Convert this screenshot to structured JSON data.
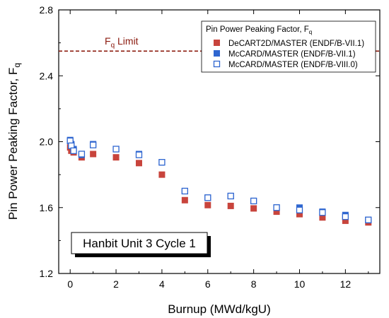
{
  "chart_data": {
    "type": "scatter",
    "xlabel": "Burnup (MWd/kgU)",
    "ylabel_main": "Pin Power Peaking Factor, F",
    "ylabel_sub": "q",
    "xlim": [
      -0.5,
      13.5
    ],
    "ylim": [
      1.2,
      2.8
    ],
    "x_ticks": [
      0,
      2,
      4,
      6,
      8,
      10,
      12
    ],
    "y_ticks": [
      1.2,
      1.6,
      2.0,
      2.4,
      2.8
    ],
    "x_tick_labels": [
      "0",
      "2",
      "4",
      "6",
      "8",
      "10",
      "12"
    ],
    "y_tick_labels": [
      "1.2",
      "1.6",
      "2.0",
      "2.4",
      "2.8"
    ],
    "limit": {
      "value": 2.55,
      "label_main": "F",
      "label_sub": "q",
      "label_rest": " Limit",
      "color": "#8b1a0e"
    },
    "annotation": "Hanbit Unit 3 Cycle 1",
    "legend": {
      "title_main": "Pin Power Peaking Factor, F",
      "title_sub": "q",
      "position": "top-right"
    },
    "series": [
      {
        "name": "DeCART2D/MASTER (ENDF/B-VII.1)",
        "marker": "filled-square",
        "color": "#c8443c",
        "x": [
          0,
          0.05,
          0.15,
          0.5,
          1,
          2,
          3,
          4,
          5,
          6,
          7,
          8,
          9,
          10,
          11,
          12,
          13
        ],
        "y": [
          1.965,
          1.945,
          1.935,
          1.905,
          1.925,
          1.905,
          1.87,
          1.8,
          1.645,
          1.615,
          1.61,
          1.595,
          1.575,
          1.56,
          1.54,
          1.52,
          1.51
        ]
      },
      {
        "name": "McCARD/MASTER (ENDF/B-VII.1)",
        "marker": "filled-square",
        "color": "#2f66d0",
        "x": [
          0,
          0.05,
          0.15,
          0.5,
          1,
          2,
          3,
          4,
          5,
          6,
          7,
          8,
          9,
          10,
          11,
          12,
          13
        ],
        "y": [
          2.01,
          1.985,
          1.955,
          1.92,
          1.985,
          1.955,
          1.925,
          1.875,
          1.7,
          1.66,
          1.67,
          1.64,
          1.6,
          1.6,
          1.575,
          1.555,
          1.525
        ]
      },
      {
        "name": "McCARD/MASTER (ENDF/B-VIII.0)",
        "marker": "open-square",
        "color": "#2f66d0",
        "x": [
          0,
          0.05,
          0.15,
          0.5,
          1,
          2,
          3,
          4,
          5,
          6,
          7,
          8,
          9,
          10,
          11,
          12,
          13
        ],
        "y": [
          2.005,
          1.975,
          1.945,
          1.925,
          1.98,
          1.955,
          1.92,
          1.875,
          1.7,
          1.66,
          1.67,
          1.64,
          1.6,
          1.585,
          1.57,
          1.545,
          1.525
        ]
      }
    ]
  }
}
